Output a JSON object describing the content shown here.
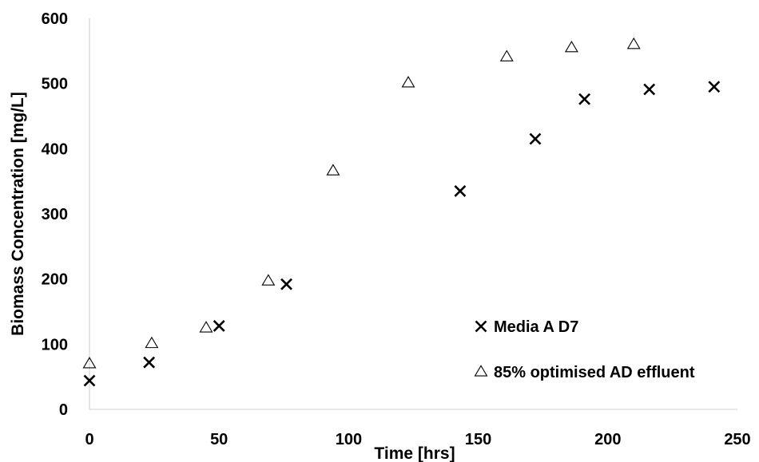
{
  "chart_data": {
    "type": "scatter",
    "xlabel": "Time [hrs]",
    "ylabel": "Biomass Concentration [mg/L]",
    "xlim": [
      0,
      250
    ],
    "ylim": [
      0,
      600
    ],
    "x_ticks": [
      0,
      50,
      100,
      150,
      200,
      250
    ],
    "y_ticks": [
      0,
      100,
      200,
      300,
      400,
      500,
      600
    ],
    "grid": false,
    "legend_position": "bottom-right",
    "series": [
      {
        "name": "Media A D7",
        "marker": "x",
        "color": "#000000",
        "x": [
          0,
          23,
          50,
          76,
          143,
          172,
          191,
          216,
          241
        ],
        "y": [
          44,
          72,
          128,
          192,
          335,
          415,
          476,
          491,
          495
        ]
      },
      {
        "name": "85% optimised AD effluent",
        "marker": "triangle",
        "color": "#000000",
        "x": [
          0,
          24,
          45,
          69,
          94,
          123,
          161,
          186,
          210
        ],
        "y": [
          70,
          101,
          125,
          197,
          366,
          501,
          541,
          555,
          560
        ]
      }
    ]
  }
}
